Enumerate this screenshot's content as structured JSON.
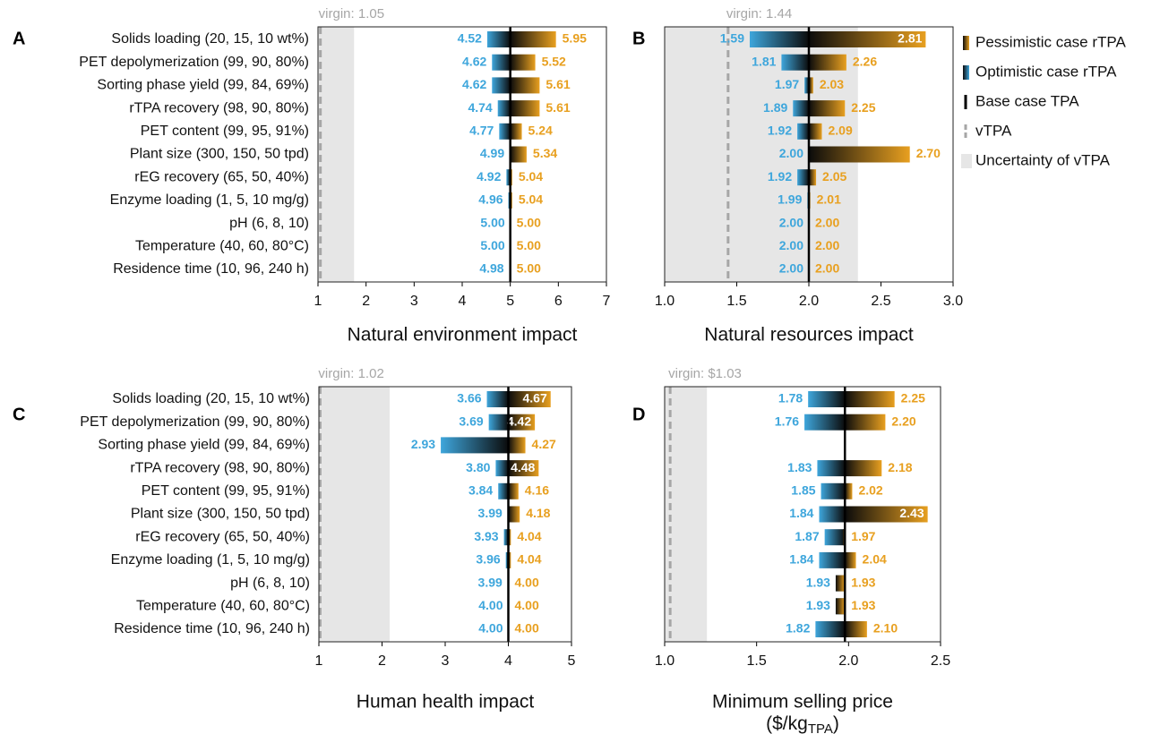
{
  "legend": [
    {
      "name": "Pessimistic case rTPA",
      "color": "#e8a020",
      "marker": "bar"
    },
    {
      "name": "Optimistic case rTPA",
      "color": "#3ea6dc",
      "marker": "bar"
    },
    {
      "name": "Base case TPA",
      "color": "#000000",
      "marker": "line"
    },
    {
      "name": "vTPA",
      "color": "#a6a6a6",
      "marker": "dashed"
    },
    {
      "name": "Uncertainty of vTPA",
      "color": "#e6e6e6",
      "marker": "box"
    }
  ],
  "chart_data": [
    {
      "type": "tornado",
      "panel": "A",
      "xlabel": "Natural environment impact",
      "categories": [
        "Solids loading (20, 15, 10 wt%)",
        "PET depolymerization (99, 90, 80%)",
        "Sorting phase yield (99, 84, 69%)",
        "rTPA recovery (98, 90, 80%)",
        "PET content (99, 95, 91%)",
        "Plant size (300, 150, 50 tpd)",
        "rEG recovery (65, 50, 40%)",
        "Enzyme loading (1, 5, 10 mg/g)",
        "pH (6, 8, 10)",
        "Temperature (40, 60, 80°C)",
        "Residence time (10, 96, 240 h)"
      ],
      "series": [
        {
          "color": "#3ea6dc",
          "values": [
            4.52,
            4.62,
            4.62,
            4.74,
            4.77,
            4.99,
            4.92,
            4.96,
            5,
            5,
            4.98
          ],
          "value_labels": [
            "4.52",
            "4.62",
            "4.62",
            "4.74",
            "4.77",
            "4.99",
            "4.92",
            "4.96",
            "5.00",
            "5.00",
            "4.98"
          ]
        },
        {
          "color": "#e8a020",
          "values": [
            5.95,
            5.52,
            5.61,
            5.61,
            5.24,
            5.34,
            5.04,
            5.04,
            5,
            5,
            5
          ],
          "value_labels": [
            "5.95",
            "5.52",
            "5.61",
            "5.61",
            "5.24",
            "5.34",
            "5.04",
            "5.04",
            "5.00",
            "5.00",
            "5.00"
          ]
        }
      ],
      "base": 5,
      "virgin": {
        "value": 1.05,
        "label": "virgin: 1.05"
      },
      "uncertainty": [
        1,
        1.75
      ],
      "xlim": [
        1,
        7
      ],
      "xticks": [
        1,
        2,
        3,
        4,
        5,
        6,
        7
      ]
    },
    {
      "type": "tornado",
      "panel": "B",
      "xlabel": "Natural resources impact",
      "series": [
        {
          "color": "#3ea6dc",
          "values": [
            1.59,
            1.81,
            1.97,
            1.89,
            1.92,
            2,
            1.92,
            1.99,
            2,
            2,
            2
          ],
          "value_labels": [
            "1.59",
            "1.81",
            "1.97",
            "1.89",
            "1.92",
            "2.00",
            "1.92",
            "1.99",
            "2.00",
            "2.00",
            "2.00"
          ]
        },
        {
          "color": "#e8a020",
          "values": [
            2.81,
            2.26,
            2.03,
            2.25,
            2.09,
            2.7,
            2.05,
            2.01,
            2,
            2,
            2
          ],
          "value_labels": [
            "2.81",
            "2.26",
            "2.03",
            "2.25",
            "2.09",
            "2.70",
            "2.05",
            "2.01",
            "2.00",
            "2.00",
            "2.00"
          ]
        }
      ],
      "base": 2,
      "virgin": {
        "value": 1.44,
        "label": "virgin: 1.44"
      },
      "uncertainty": [
        1,
        2.34
      ],
      "xlim": [
        1,
        3
      ],
      "xticks": [
        {
          "value": 1,
          "label": "1.0"
        },
        {
          "value": 1.5,
          "label": "1.5"
        },
        {
          "value": 2,
          "label": "2.0"
        },
        {
          "value": 2.5,
          "label": "2.5"
        },
        {
          "value": 3,
          "label": "3.0"
        }
      ]
    },
    {
      "type": "tornado",
      "panel": "C",
      "xlabel": "Human health impact",
      "categories": [
        "Solids loading (20, 15, 10 wt%)",
        "PET depolymerization (99, 90, 80%)",
        "Sorting phase yield (99, 84, 69%)",
        "rTPA recovery (98, 90, 80%)",
        "PET content (99, 95, 91%)",
        "Plant size (300, 150, 50 tpd)",
        "rEG recovery (65, 50, 40%)",
        "Enzyme loading (1, 5, 10 mg/g)",
        "pH (6, 8, 10)",
        "Temperature (40, 60, 80°C)",
        "Residence time (10, 96, 240 h)"
      ],
      "series": [
        {
          "color": "#3ea6dc",
          "values": [
            3.66,
            3.69,
            2.93,
            3.8,
            3.84,
            3.99,
            3.93,
            3.96,
            3.99,
            4,
            4
          ],
          "value_labels": [
            "3.66",
            "3.69",
            "2.93",
            "3.80",
            "3.84",
            "3.99",
            "3.93",
            "3.96",
            "3.99",
            "4.00",
            "4.00"
          ]
        },
        {
          "color": "#e8a020",
          "values": [
            4.67,
            4.42,
            4.27,
            4.48,
            4.16,
            4.18,
            4.04,
            4.04,
            4,
            4,
            4
          ],
          "value_labels": [
            "4.67",
            "4.42",
            "4.27",
            "4.48",
            "4.16",
            "4.18",
            "4.04",
            "4.04",
            "4.00",
            "4.00",
            "4.00"
          ]
        }
      ],
      "base": 4,
      "virgin": {
        "value": 1.02,
        "label": "virgin: 1.02"
      },
      "uncertainty": [
        1,
        2.12
      ],
      "xlim": [
        1,
        5
      ],
      "xticks": [
        1,
        2,
        3,
        4,
        5
      ]
    },
    {
      "type": "tornado",
      "panel": "D",
      "xlabel": "Minimum selling price",
      "xlabel_unit": {
        "text": "($/kg",
        "sub": "TPA",
        "end": ")"
      },
      "series": [
        {
          "color": "#3ea6dc",
          "values": [
            1.78,
            1.76,
            null,
            1.83,
            1.85,
            1.84,
            1.87,
            1.84,
            1.93,
            1.93,
            1.82
          ],
          "value_labels": [
            "1.78",
            "1.76",
            null,
            "1.83",
            "1.85",
            "1.84",
            "1.87",
            "1.84",
            "1.93",
            "1.93",
            "1.82"
          ]
        },
        {
          "color": "#e8a020",
          "values": [
            2.25,
            2.2,
            null,
            2.18,
            2.02,
            2.43,
            1.97,
            2.04,
            1.93,
            1.93,
            2.1
          ],
          "value_labels": [
            "2.25",
            "2.20",
            null,
            "2.18",
            "2.02",
            "2.43",
            "1.97",
            "2.04",
            "1.93",
            "1.93",
            "2.10"
          ]
        }
      ],
      "base": 1.98,
      "virgin": {
        "value": 1.03,
        "label": "virgin: $1.03"
      },
      "uncertainty": [
        1,
        1.23
      ],
      "xlim": [
        1,
        2.5
      ],
      "xticks": [
        {
          "value": 1,
          "label": "1.0"
        },
        {
          "value": 1.5,
          "label": "1.5"
        },
        {
          "value": 2,
          "label": "2.0"
        },
        {
          "value": 2.5,
          "label": "2.5"
        }
      ]
    }
  ]
}
